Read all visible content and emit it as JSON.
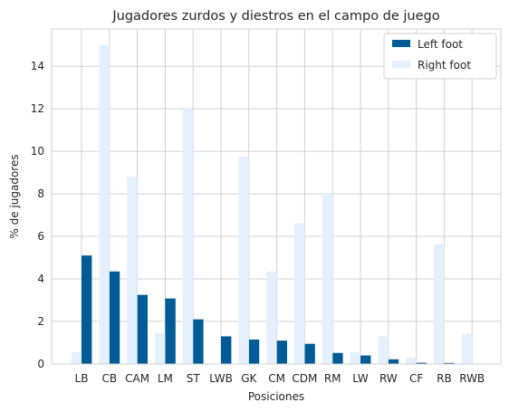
{
  "chart_data": {
    "type": "bar",
    "title": "Jugadores zurdos y diestros en el campo de juego",
    "xlabel": "Posiciones",
    "ylabel": "% de jugadores",
    "categories": [
      "LB",
      "CB",
      "CAM",
      "LM",
      "ST",
      "LWB",
      "GK",
      "CM",
      "CDM",
      "RM",
      "LW",
      "RW",
      "CF",
      "RB",
      "RWB"
    ],
    "series": [
      {
        "name": "Left foot",
        "color": "#005b96",
        "values": [
          5.1,
          4.35,
          3.25,
          3.08,
          2.1,
          1.3,
          1.15,
          1.1,
          0.95,
          0.52,
          0.4,
          0.22,
          0.06,
          0.05,
          0.0
        ]
      },
      {
        "name": "Right foot",
        "color": "#e5f0ff",
        "values": [
          0.55,
          15.0,
          8.8,
          1.45,
          12.0,
          0.0,
          9.75,
          4.35,
          6.62,
          8.0,
          0.55,
          1.3,
          0.3,
          5.62,
          1.42
        ]
      }
    ],
    "yticks": [
      "0",
      "2",
      "4",
      "6",
      "8",
      "10",
      "12",
      "14"
    ],
    "ylim": [
      0,
      15.75
    ],
    "grid": true,
    "legend_position": "top-right"
  }
}
